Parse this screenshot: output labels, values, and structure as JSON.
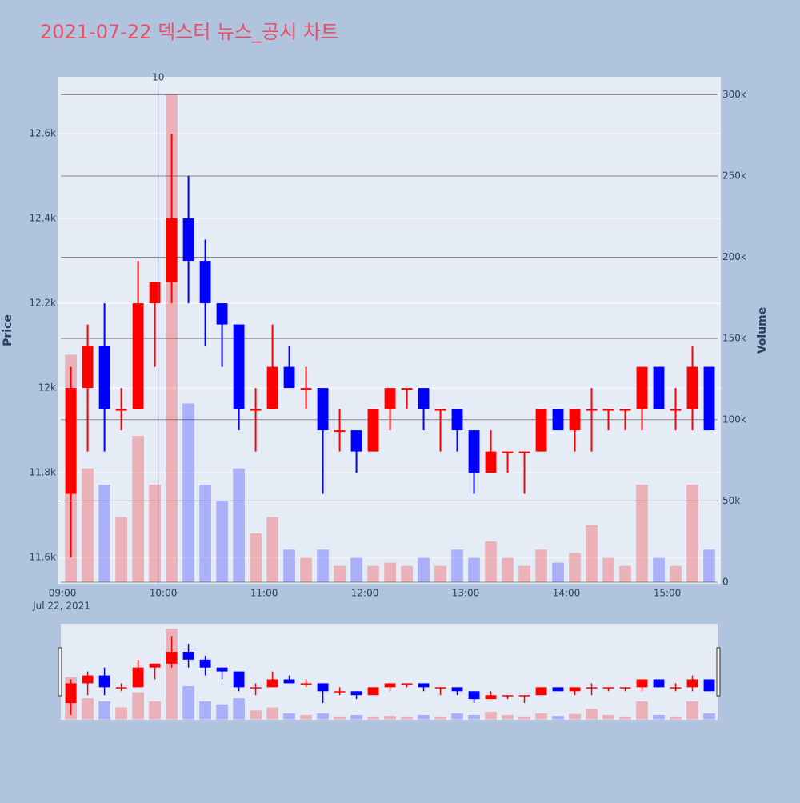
{
  "chart_data": {
    "type": "candlestick",
    "title": "2021-07-22 덱스터 뉴스_공시 차트",
    "y_label": "Price",
    "y2_label": "Volume",
    "x_date_label": "Jul 22, 2021",
    "increasing_color": "#ff0000",
    "decreasing_color": "#0000ff",
    "x": [
      "2021-07-22 09:05",
      "2021-07-22 09:15",
      "2021-07-22 09:25",
      "2021-07-22 09:35",
      "2021-07-22 09:45",
      "2021-07-22 09:55",
      "2021-07-22 10:05",
      "2021-07-22 10:15",
      "2021-07-22 10:25",
      "2021-07-22 10:35",
      "2021-07-22 10:45",
      "2021-07-22 10:55",
      "2021-07-22 11:05",
      "2021-07-22 11:15",
      "2021-07-22 11:25",
      "2021-07-22 11:35",
      "2021-07-22 11:45",
      "2021-07-22 11:55",
      "2021-07-22 12:05",
      "2021-07-22 12:15",
      "2021-07-22 12:25",
      "2021-07-22 12:35",
      "2021-07-22 12:45",
      "2021-07-22 12:55",
      "2021-07-22 13:05",
      "2021-07-22 13:15",
      "2021-07-22 13:25",
      "2021-07-22 13:35",
      "2021-07-22 13:45",
      "2021-07-22 13:55",
      "2021-07-22 14:05",
      "2021-07-22 14:15",
      "2021-07-22 14:25",
      "2021-07-22 14:35",
      "2021-07-22 14:45",
      "2021-07-22 14:55",
      "2021-07-22 15:05",
      "2021-07-22 15:15",
      "2021-07-22 15:25"
    ],
    "open": [
      11750,
      12000,
      12100,
      11950,
      11950,
      12200,
      12250,
      12400,
      12300,
      12200,
      12150,
      11950,
      11950,
      12050,
      12000,
      12000,
      11900,
      11900,
      11850,
      11950,
      12000,
      12000,
      11950,
      11950,
      11900,
      11800,
      11850,
      11850,
      11850,
      11950,
      11900,
      11950,
      11950,
      11950,
      11950,
      12050,
      11950,
      11950,
      12050
    ],
    "high": [
      12050,
      12150,
      12200,
      12000,
      12300,
      12250,
      12600,
      12500,
      12350,
      12200,
      12150,
      12000,
      12150,
      12100,
      12050,
      12000,
      11950,
      11900,
      11950,
      12000,
      12000,
      12000,
      11950,
      11950,
      11900,
      11900,
      11850,
      11850,
      11950,
      11950,
      11950,
      12000,
      11950,
      11950,
      12050,
      12050,
      12000,
      12100,
      12050
    ],
    "low": [
      11600,
      11850,
      11850,
      11900,
      11950,
      12050,
      12200,
      12200,
      12100,
      12050,
      11900,
      11850,
      11950,
      12000,
      11950,
      11750,
      11850,
      11800,
      11850,
      11900,
      11950,
      11900,
      11850,
      11850,
      11750,
      11800,
      11800,
      11750,
      11850,
      11900,
      11850,
      11850,
      11900,
      11900,
      11900,
      11950,
      11900,
      11900,
      11900
    ],
    "close": [
      12000,
      12100,
      11950,
      11950,
      12200,
      12250,
      12400,
      12300,
      12200,
      12150,
      11950,
      11950,
      12050,
      12000,
      12000,
      11900,
      11900,
      11850,
      11950,
      12000,
      12000,
      11950,
      11950,
      11900,
      11800,
      11850,
      11850,
      11850,
      11950,
      11900,
      11950,
      11950,
      11950,
      11950,
      12050,
      11950,
      11950,
      12050,
      11900
    ],
    "volume": [
      140000,
      70000,
      60000,
      40000,
      90000,
      60000,
      300000,
      110000,
      60000,
      50000,
      70000,
      30000,
      40000,
      20000,
      15000,
      20000,
      10000,
      15000,
      10000,
      12000,
      10000,
      15000,
      10000,
      20000,
      15000,
      25000,
      15000,
      10000,
      20000,
      12000,
      18000,
      35000,
      15000,
      10000,
      60000,
      15000,
      10000,
      60000,
      20000
    ],
    "xlim": [
      "2021-07-22 08:59",
      "2021-07-22 15:30"
    ],
    "xticks": [
      {
        "value": "2021-07-22 09:00",
        "label": "09:00"
      },
      {
        "value": "2021-07-22 10:00",
        "label": "10:00"
      },
      {
        "value": "2021-07-22 11:00",
        "label": "11:00"
      },
      {
        "value": "2021-07-22 12:00",
        "label": "12:00"
      },
      {
        "value": "2021-07-22 13:00",
        "label": "13:00"
      },
      {
        "value": "2021-07-22 14:00",
        "label": "14:00"
      },
      {
        "value": "2021-07-22 15:00",
        "label": "15:00"
      }
    ],
    "ylim": [
      11538,
      12734
    ],
    "yticks": [
      {
        "value": 11600,
        "label": "11.6k"
      },
      {
        "value": 11800,
        "label": "11.8k"
      },
      {
        "value": 12000,
        "label": "12k"
      },
      {
        "value": 12200,
        "label": "12.2k"
      },
      {
        "value": 12400,
        "label": "12.4k"
      },
      {
        "value": 12600,
        "label": "12.6k"
      }
    ],
    "y2lim": [
      -1000,
      311000
    ],
    "y2ticks": [
      0,
      {
        "value": 50000,
        "label": "50k"
      },
      {
        "value": 100000,
        "label": "100k"
      },
      {
        "value": 150000,
        "label": "150k"
      },
      {
        "value": 200000,
        "label": "200k"
      },
      {
        "value": 250000,
        "label": "250k"
      },
      {
        "value": 300000,
        "label": "300k"
      }
    ],
    "annotations": [
      {
        "x": "2021-07-22 09:57",
        "text": "10"
      }
    ],
    "grid": true,
    "rangeslider": true
  }
}
